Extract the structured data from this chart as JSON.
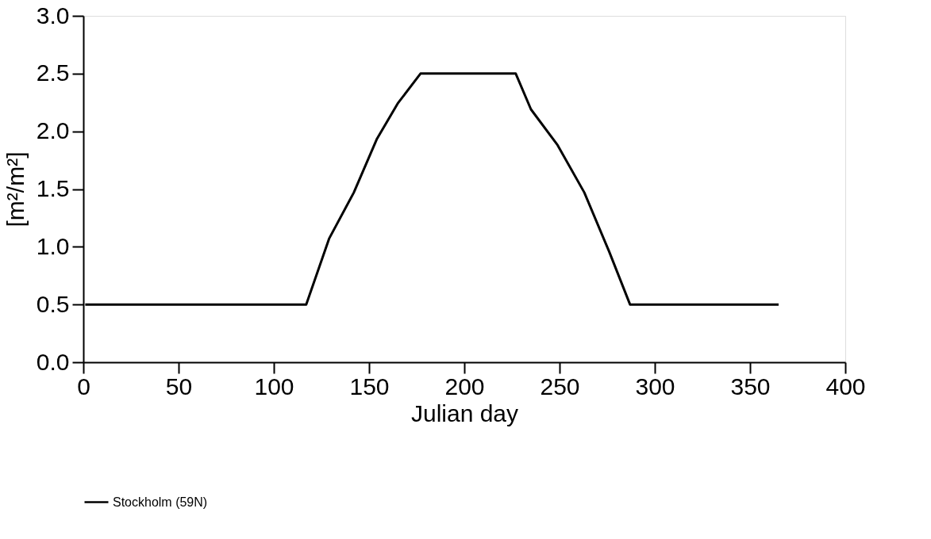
{
  "chart_data": {
    "type": "line",
    "xlabel": "Julian day",
    "ylabel": "[m²/m²]",
    "xlim": [
      0,
      400
    ],
    "xticks": [
      0,
      50,
      100,
      150,
      200,
      250,
      300,
      350,
      400
    ],
    "ylim": [
      0,
      3
    ],
    "yticks": [
      {
        "value": 0,
        "label": "0.0"
      },
      {
        "value": 0.5,
        "label": "0.5"
      },
      {
        "value": 1,
        "label": "1.0"
      },
      {
        "value": 1.5,
        "label": "1.5"
      },
      {
        "value": 2,
        "label": "2.0"
      },
      {
        "value": 2.5,
        "label": "2.5"
      },
      {
        "value": 3,
        "label": "3.0"
      }
    ],
    "grid": false,
    "legend": "bottom",
    "marker": "none",
    "line_style": "solid",
    "series": [
      {
        "name": "Stockholm (59N)",
        "color": "#000000",
        "x": [
          1,
          117,
          129,
          142,
          154,
          165,
          177,
          227,
          235,
          249,
          263,
          276,
          287,
          365
        ],
        "values": [
          0.5,
          0.5,
          1.07,
          1.47,
          1.93,
          2.24,
          2.5,
          2.5,
          2.19,
          1.88,
          1.47,
          0.96,
          0.5,
          0.5
        ]
      }
    ]
  }
}
